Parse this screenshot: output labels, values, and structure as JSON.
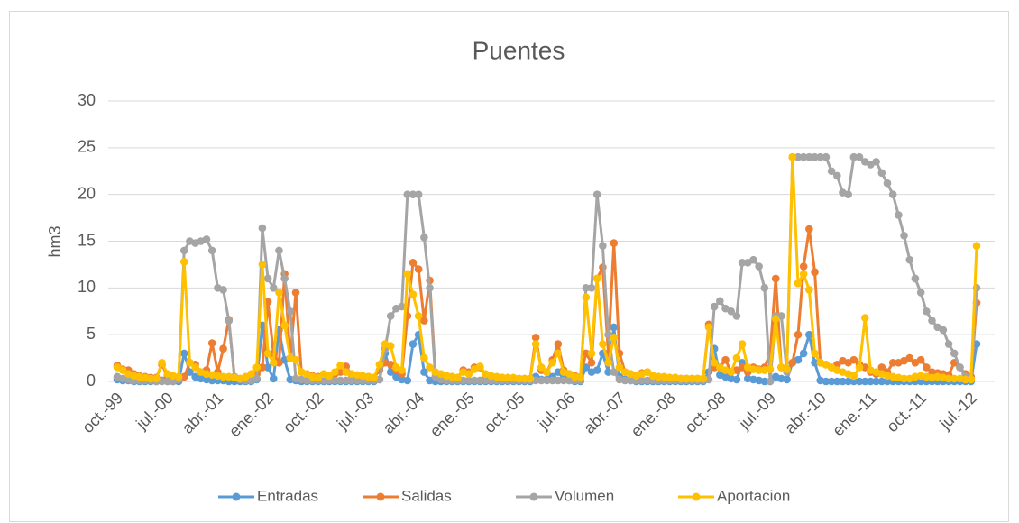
{
  "chart_data": {
    "type": "line",
    "title": "Puentes",
    "y_label": "hm3",
    "categories": [
      "oct.-99",
      null,
      null,
      null,
      null,
      null,
      null,
      null,
      null,
      "jul.-00",
      null,
      null,
      null,
      null,
      null,
      null,
      null,
      null,
      "abr.-01",
      null,
      null,
      null,
      null,
      null,
      null,
      null,
      null,
      "ene.-02",
      null,
      null,
      null,
      null,
      null,
      null,
      null,
      null,
      "oct.-02",
      null,
      null,
      null,
      null,
      null,
      null,
      null,
      null,
      "jul.-03",
      null,
      null,
      null,
      null,
      null,
      null,
      null,
      null,
      "abr.-04",
      null,
      null,
      null,
      null,
      null,
      null,
      null,
      null,
      "ene.-05",
      null,
      null,
      null,
      null,
      null,
      null,
      null,
      null,
      "oct.-05",
      null,
      null,
      null,
      null,
      null,
      null,
      null,
      null,
      "jul.-06",
      null,
      null,
      null,
      null,
      null,
      null,
      null,
      null,
      "abr.-07",
      null,
      null,
      null,
      null,
      null,
      null,
      null,
      null,
      "ene.-08",
      null,
      null,
      null,
      null,
      null,
      null,
      null,
      null,
      "oct.-08",
      null,
      null,
      null,
      null,
      null,
      null,
      null,
      null,
      "jul.-09",
      null,
      null,
      null,
      null,
      null,
      null,
      null,
      null,
      "abr.-10",
      null,
      null,
      null,
      null,
      null,
      null,
      null,
      null,
      "ene.-11",
      null,
      null,
      null,
      null,
      null,
      null,
      null,
      null,
      "oct.-11",
      null,
      null,
      null,
      null,
      null,
      null,
      null,
      null,
      "jul.-12",
      null
    ],
    "series": [
      {
        "name": "Entradas",
        "color": "#5b9bd5",
        "values": [
          0.2,
          0.1,
          0.1,
          0,
          0,
          0,
          0,
          0,
          0.1,
          0,
          0,
          0,
          3,
          1,
          0.5,
          0.3,
          0.2,
          0.1,
          0.1,
          0.1,
          0,
          0,
          0,
          0,
          0,
          0.2,
          6,
          1.5,
          0.3,
          5.5,
          2.3,
          0.2,
          0.1,
          0,
          0,
          0,
          0,
          0,
          0,
          0,
          0,
          0,
          0,
          0,
          0,
          0,
          0,
          0.2,
          3,
          1,
          0.5,
          0.2,
          0.1,
          4,
          5,
          1,
          0.1,
          0,
          0,
          0,
          0,
          0,
          0,
          0,
          0,
          0,
          0,
          0,
          0,
          0,
          0,
          0,
          0,
          0,
          0,
          0.5,
          0.2,
          0.2,
          0.5,
          1,
          0.3,
          0.1,
          0,
          0,
          1.5,
          1,
          1.2,
          3,
          1,
          5.8,
          0.5,
          0.2,
          0.1,
          0,
          0,
          0,
          0,
          0,
          0,
          0,
          0,
          0,
          0,
          0,
          0,
          0,
          1,
          3.5,
          0.7,
          0.5,
          0.3,
          0.2,
          2,
          0.3,
          0.2,
          0.1,
          0,
          0,
          0.5,
          0.3,
          0.2,
          2,
          2.3,
          3,
          5,
          2,
          0.1,
          0,
          0,
          0,
          0,
          0,
          0,
          0,
          0,
          0,
          0,
          0,
          0,
          0,
          0,
          0,
          0,
          0,
          0,
          0,
          0,
          0,
          0,
          0,
          0,
          0,
          0,
          0,
          4
        ]
      },
      {
        "name": "Salidas",
        "color": "#ed7d31",
        "values": [
          1.7,
          1.3,
          1.2,
          0.8,
          0.6,
          0.5,
          0.4,
          0.4,
          1.8,
          0.6,
          0.5,
          0.4,
          0.5,
          2,
          1.8,
          1,
          1.2,
          4.1,
          1,
          3.5,
          6.6,
          0.5,
          0.3,
          0.3,
          0.5,
          0.8,
          1.5,
          8.5,
          3,
          2,
          11.5,
          2.5,
          9.5,
          1,
          0.8,
          0.6,
          0.5,
          0.6,
          0.5,
          0.8,
          1,
          1.6,
          0.7,
          0.6,
          0.5,
          0.5,
          0.4,
          1.2,
          2,
          1.8,
          1.2,
          0.8,
          7,
          12.7,
          12,
          6.5,
          10.8,
          1,
          0.7,
          0.6,
          0.5,
          0.4,
          1.2,
          1,
          1.5,
          1.5,
          0.6,
          0.5,
          0.4,
          0.4,
          0.4,
          0.3,
          0.3,
          0.3,
          0.3,
          4.7,
          1.2,
          1,
          2.3,
          4,
          1.2,
          0.8,
          0.6,
          0.5,
          3,
          2,
          11,
          12.2,
          3,
          14.8,
          3,
          1,
          0.8,
          0.6,
          0.9,
          1,
          0.6,
          0.5,
          0.4,
          0.4,
          0.4,
          0.3,
          0.3,
          0.3,
          0.3,
          0.3,
          6.1,
          1.5,
          1.5,
          2.3,
          1,
          1.2,
          1.5,
          1,
          1.5,
          1.3,
          1.5,
          3,
          11,
          1.5,
          1.2,
          2,
          5,
          12.3,
          16.3,
          11.7,
          2,
          1.8,
          1.5,
          1.8,
          2.2,
          2,
          2.3,
          1.8,
          1.5,
          1,
          0.8,
          1.5,
          1,
          2,
          2,
          2.2,
          2.5,
          2,
          2.3,
          1.5,
          1,
          0.9,
          0.8,
          0.7,
          2,
          1.5,
          0.8,
          0.5,
          8.4
        ]
      },
      {
        "name": "Volumen",
        "color": "#a5a5a5",
        "values": [
          0.5,
          0.3,
          0.2,
          0.1,
          0.1,
          0.1,
          0.1,
          0,
          0,
          0,
          0,
          0.2,
          14,
          15,
          14.8,
          15,
          15.2,
          14,
          10,
          9.8,
          6.5,
          0.5,
          0.2,
          0.1,
          0.1,
          0.3,
          16.4,
          11,
          10,
          14,
          11,
          7.5,
          0.3,
          0.2,
          0.1,
          0.1,
          0.1,
          0.1,
          0.1,
          0.1,
          0.1,
          0.1,
          0.1,
          0.1,
          0.1,
          0.1,
          0.1,
          0.2,
          3.5,
          7,
          7.8,
          8,
          20,
          20,
          20,
          15.4,
          10,
          0.5,
          0.2,
          0.1,
          0.1,
          0.1,
          0.1,
          0.1,
          0.1,
          0.1,
          0.1,
          0.1,
          0.1,
          0.1,
          0.1,
          0.1,
          0.1,
          0.1,
          0.1,
          0.1,
          0.1,
          0.1,
          0.1,
          0.1,
          0.1,
          0.1,
          0.1,
          0.1,
          10,
          10,
          20,
          14.5,
          5,
          1,
          0.2,
          0.1,
          0.1,
          0.1,
          0.1,
          0.1,
          0.1,
          0.1,
          0.1,
          0.1,
          0.1,
          0.1,
          0.1,
          0.1,
          0.1,
          0.1,
          0.2,
          8,
          8.6,
          7.8,
          7.5,
          7,
          12.7,
          12.7,
          13,
          12.3,
          10,
          0,
          7,
          7,
          1,
          24,
          24,
          24,
          24,
          24,
          24,
          24,
          22.5,
          22,
          20.2,
          20,
          24,
          24,
          23.5,
          23.2,
          23.5,
          22.3,
          21.2,
          20,
          17.8,
          15.6,
          13,
          11,
          9.5,
          7.5,
          6.5,
          5.8,
          5.5,
          4,
          3,
          1.5,
          0.5,
          0.3,
          10
        ]
      },
      {
        "name": "Aportacion",
        "color": "#ffc000",
        "values": [
          1.5,
          1.2,
          0.8,
          0.6,
          0.5,
          0.4,
          0.3,
          0.3,
          2,
          0.8,
          0.6,
          0.5,
          12.8,
          2,
          1.5,
          1,
          0.8,
          0.7,
          0.6,
          0.5,
          0.5,
          0.4,
          0.3,
          0.5,
          0.8,
          1.5,
          12.5,
          3,
          2,
          9.5,
          6,
          2.5,
          2.3,
          1,
          0.8,
          0.5,
          0.4,
          0.8,
          0.6,
          1,
          1.7,
          1,
          0.8,
          0.7,
          0.6,
          0.5,
          0.4,
          1.8,
          4,
          3.8,
          1.5,
          1.2,
          11.5,
          9.3,
          7,
          2.5,
          1.5,
          1,
          0.8,
          0.6,
          0.5,
          0.4,
          1,
          0.8,
          1.3,
          1.6,
          0.8,
          0.6,
          0.5,
          0.4,
          0.4,
          0.4,
          0.3,
          0.3,
          0.3,
          4,
          1.5,
          1,
          2,
          3,
          1,
          0.8,
          0.5,
          0.5,
          9,
          3,
          11,
          4,
          2,
          4.7,
          1.5,
          1,
          0.8,
          0.6,
          0.8,
          1,
          0.6,
          0.5,
          0.5,
          0.4,
          0.4,
          0.3,
          0.3,
          0.3,
          0.3,
          0.3,
          5.8,
          2,
          1.5,
          1.2,
          1,
          2.5,
          4,
          1.5,
          1.3,
          1.2,
          1.2,
          1.3,
          6.7,
          1.5,
          1.3,
          24,
          10.5,
          11.5,
          9.8,
          3,
          2,
          1.8,
          1.5,
          1.2,
          1,
          0.8,
          0.6,
          1.5,
          6.8,
          1.2,
          1,
          0.8,
          0.6,
          0.5,
          0.4,
          0.3,
          0.3,
          0.5,
          0.6,
          0.5,
          0.4,
          0.5,
          0.4,
          0.3,
          0.3,
          0.3,
          0.2,
          0.2,
          14.5
        ]
      }
    ],
    "ylim": [
      0,
      30
    ],
    "yticks": [
      0,
      5,
      10,
      15,
      20,
      25,
      30
    ],
    "grid": true,
    "legend": "bottom"
  }
}
